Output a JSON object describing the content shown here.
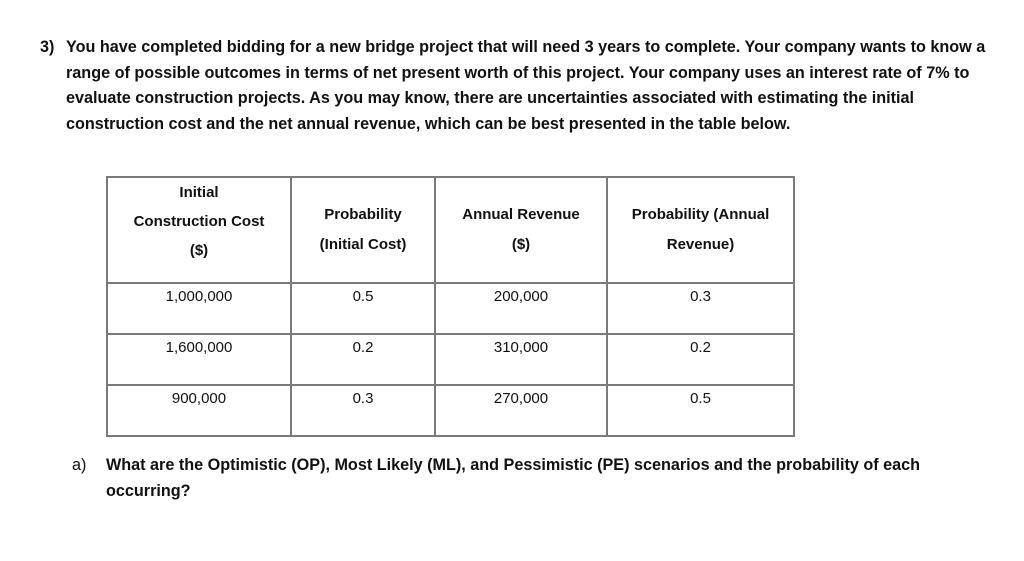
{
  "problem": {
    "number": "3)",
    "text": "You have completed bidding for a new bridge project that will need 3 years to complete.  Your company wants to know a range of possible outcomes in terms of net present worth of this project.  Your company uses an interest rate of 7% to evaluate construction projects.  As you may know, there are uncertainties associated with estimating the initial construction cost and the net annual revenue, which can be best presented in the table below."
  },
  "table": {
    "headers": [
      {
        "line1": "Initial",
        "line2": "Construction Cost",
        "line3": "($)"
      },
      {
        "line1": "Probability",
        "line2": "(Initial Cost)"
      },
      {
        "line1": "Annual Revenue",
        "line2": "($)"
      },
      {
        "line1": "Probability (Annual",
        "line2": "Revenue)"
      }
    ],
    "rows": [
      {
        "initial_cost": "1,000,000",
        "prob_initial": "0.5",
        "annual_revenue": "200,000",
        "prob_revenue": "0.3"
      },
      {
        "initial_cost": "1,600,000",
        "prob_initial": "0.2",
        "annual_revenue": "310,000",
        "prob_revenue": "0.2"
      },
      {
        "initial_cost": "900,000",
        "prob_initial": "0.3",
        "annual_revenue": "270,000",
        "prob_revenue": "0.5"
      }
    ]
  },
  "question": {
    "label": "a)",
    "text": "What are the Optimistic (OP), Most Likely (ML), and Pessimistic (PE) scenarios and the probability of each occurring?"
  }
}
